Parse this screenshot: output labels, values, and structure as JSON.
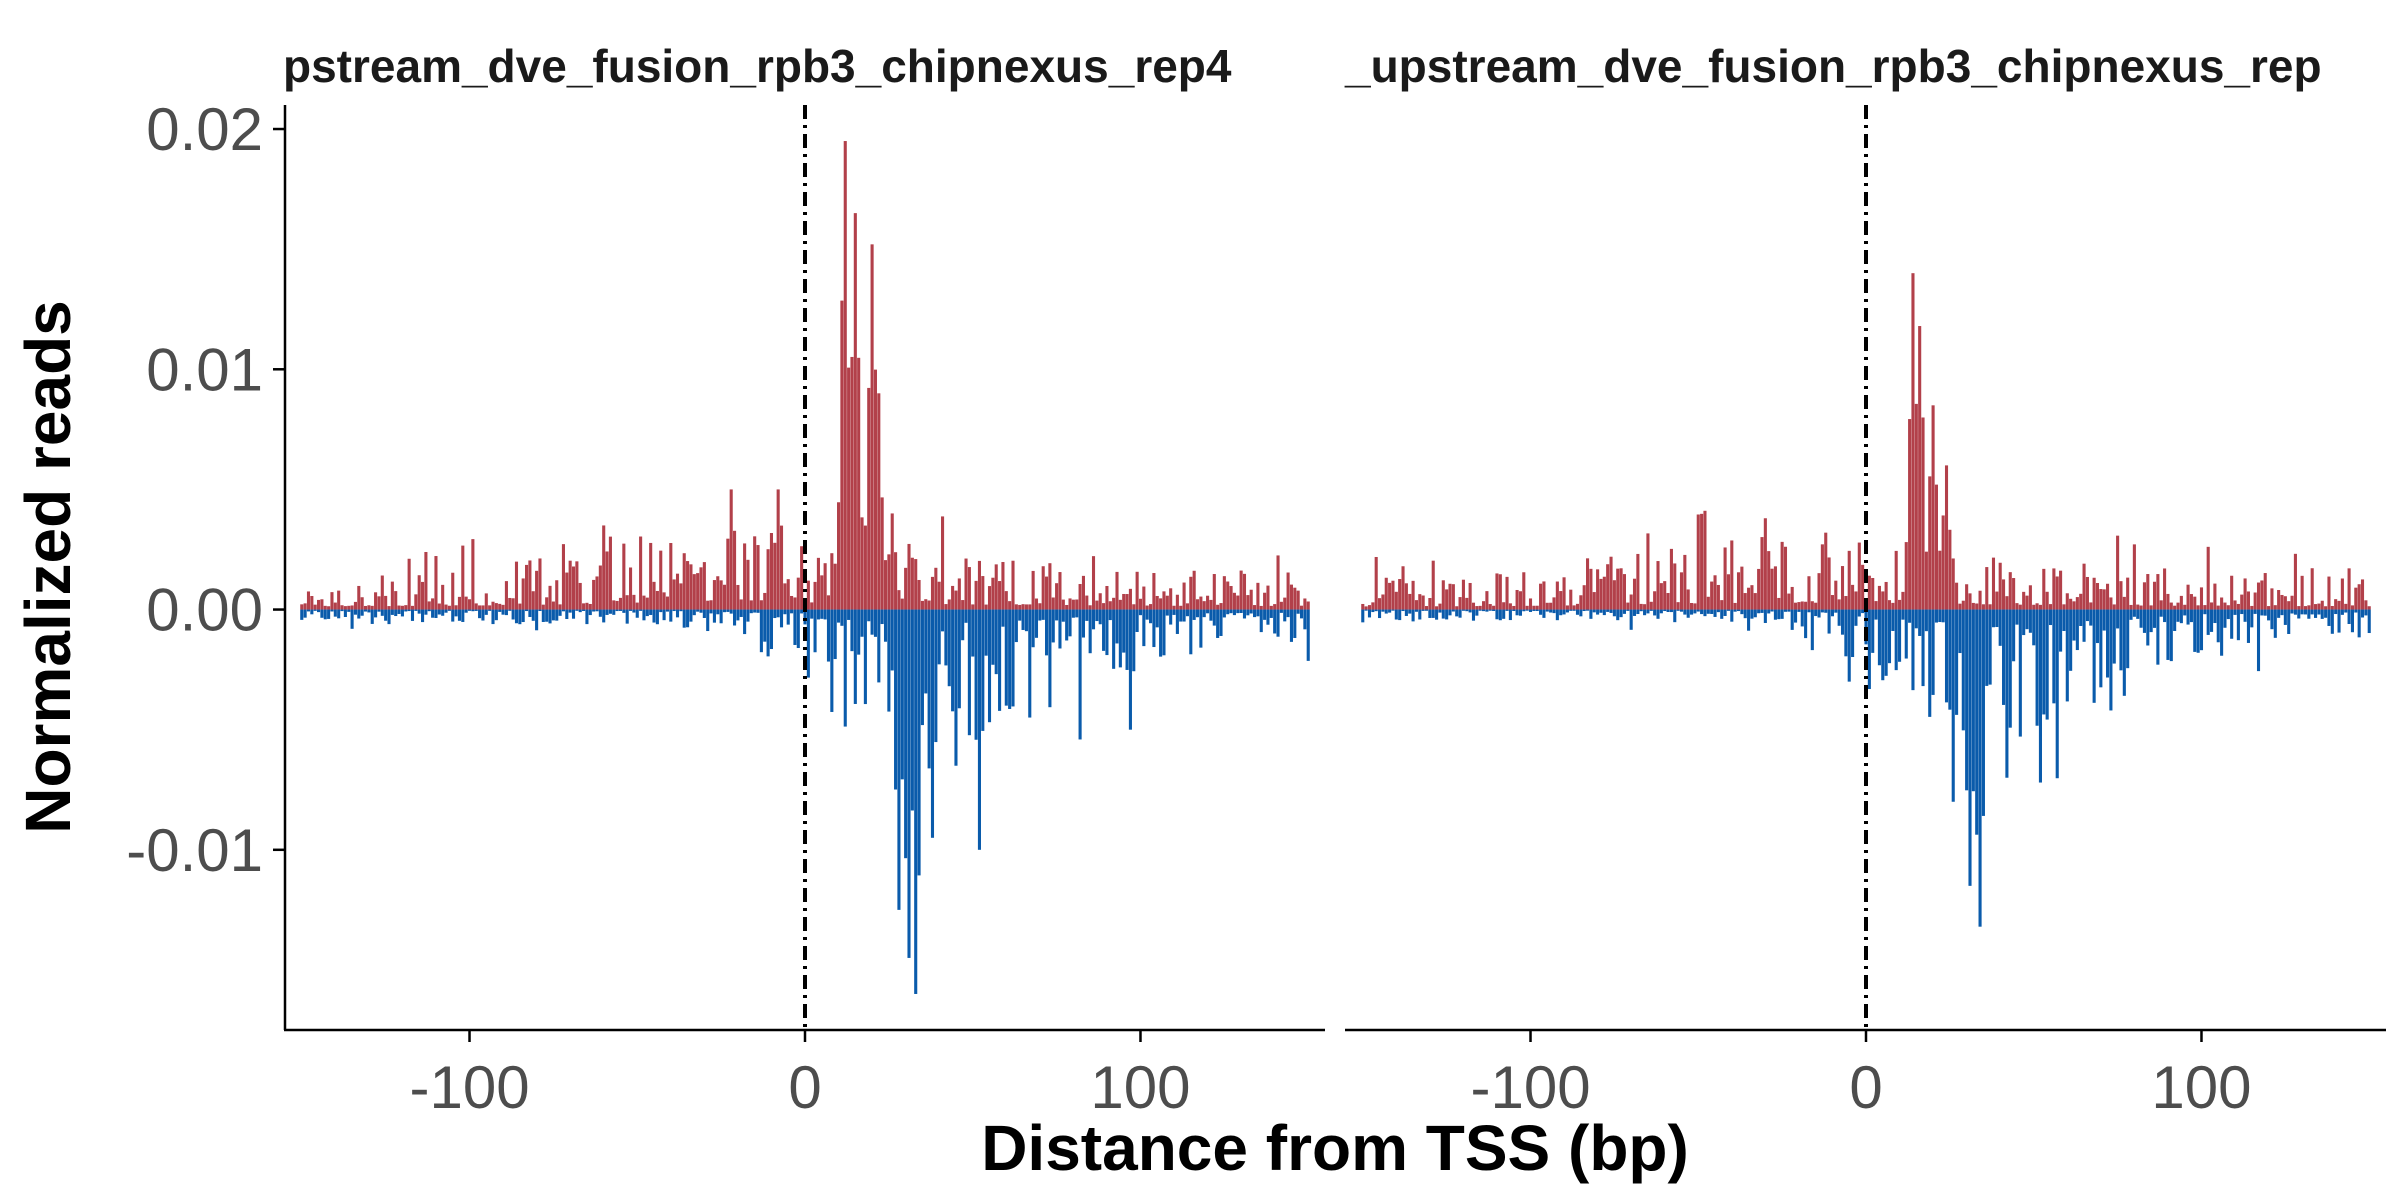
{
  "chart_data": {
    "type": "bar",
    "ylabel": "Normalized reads",
    "xlabel": "Distance from TSS (bp)",
    "xlim": [
      -155,
      155
    ],
    "ylim": [
      -0.0175,
      0.021
    ],
    "x_ticks": [
      -100,
      0,
      100
    ],
    "x_tick_labels": [
      "-100",
      "0",
      "100"
    ],
    "y_ticks": [
      -0.01,
      0.0,
      0.01,
      0.02
    ],
    "y_tick_labels": [
      "-0.01",
      "0.00",
      "0.01",
      "0.02"
    ],
    "grid": false,
    "reference_line_x": 0,
    "colors": {
      "positive_strand": "#b2404a",
      "negative_strand": "#0a5bab"
    },
    "panels": [
      {
        "title": "pstream_dve_fusion_rpb3_chipnexus_rep4",
        "x_range": [
          -150,
          150
        ],
        "peaks_positive": [
          {
            "x": 12,
            "value": 0.0195
          },
          {
            "x": 15,
            "value": 0.0165
          },
          {
            "x": 20,
            "value": 0.0152
          },
          {
            "x": 22,
            "value": 0.009
          },
          {
            "x": 26,
            "value": 0.004
          },
          {
            "x": -22,
            "value": 0.005
          },
          {
            "x": -8,
            "value": 0.005
          },
          {
            "x": -60,
            "value": 0.0035
          }
        ],
        "peaks_negative": [
          {
            "x": 33,
            "value": -0.016
          },
          {
            "x": 31,
            "value": -0.0145
          },
          {
            "x": 28,
            "value": -0.0125
          },
          {
            "x": 38,
            "value": -0.0095
          },
          {
            "x": 52,
            "value": -0.01
          },
          {
            "x": 45,
            "value": -0.0065
          },
          {
            "x": 97,
            "value": -0.005
          }
        ]
      },
      {
        "title": "_upstream_dve_fusion_rpb3_chipnexus_rep",
        "x_range": [
          -150,
          150
        ],
        "peaks_positive": [
          {
            "x": 14,
            "value": 0.014
          },
          {
            "x": 16,
            "value": 0.0118
          },
          {
            "x": 20,
            "value": 0.0085
          },
          {
            "x": 24,
            "value": 0.006
          },
          {
            "x": -30,
            "value": 0.0038
          },
          {
            "x": -12,
            "value": 0.0032
          }
        ],
        "peaks_negative": [
          {
            "x": 34,
            "value": -0.0132
          },
          {
            "x": 31,
            "value": -0.0115
          },
          {
            "x": 26,
            "value": -0.008
          },
          {
            "x": 42,
            "value": -0.007
          },
          {
            "x": 52,
            "value": -0.0072
          },
          {
            "x": 73,
            "value": -0.0042
          },
          {
            "x": -5,
            "value": -0.003
          }
        ]
      }
    ]
  }
}
